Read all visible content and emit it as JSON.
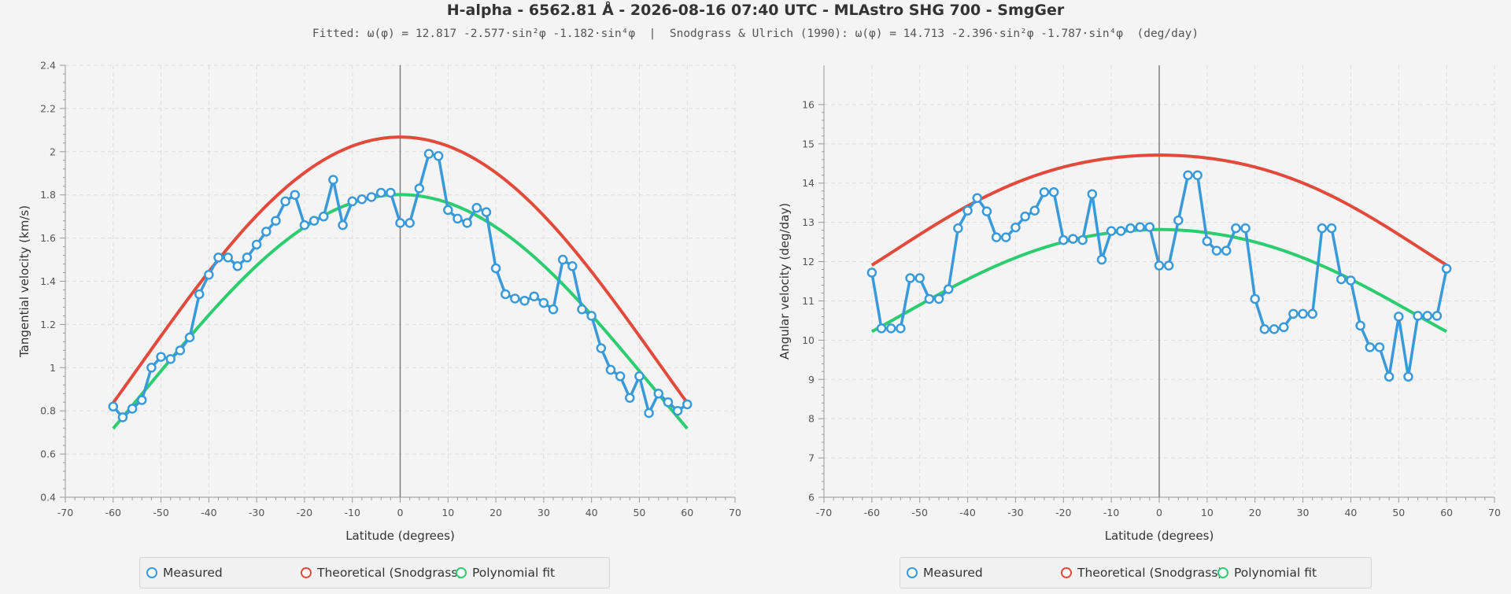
{
  "header": {
    "title": "H-alpha - 6562.81 Å - 2026-08-16 07:40 UTC - MLAstro SHG 700 - SmgGer",
    "subtitle": "Fitted: ω(φ) = 12.817 -2.577·sin²φ -1.182·sin⁴φ  |  Snodgrass & Ulrich (1990): ω(φ) = 14.713 -2.396·sin²φ -1.787·sin⁴φ  (deg/day)"
  },
  "colors": {
    "measured": "#3a9ad9",
    "theoretical": "#e24a3b",
    "fit": "#2ecc71",
    "grid": "#dcdcdc",
    "zero_line": "#777777"
  },
  "legend": {
    "measured": "Measured",
    "theoretical": "Theoretical (Snodgrass)",
    "fit": "Polynomial fit"
  },
  "chart_data": [
    {
      "type": "line",
      "id": "tangential",
      "xlabel": "Latitude (degrees)",
      "ylabel": "Tangential velocity (km/s)",
      "xlim": [
        -70,
        70
      ],
      "ylim": [
        0.4,
        2.4
      ],
      "xticks": [
        -70,
        -60,
        -50,
        -40,
        -30,
        -20,
        -10,
        0,
        10,
        20,
        30,
        40,
        50,
        60,
        70
      ],
      "yticks": [
        0.4,
        0.6,
        0.8,
        1,
        1.2,
        1.4,
        1.6,
        1.8,
        2,
        2.2,
        2.4
      ],
      "grid": true,
      "legend_position": "bottom",
      "series": [
        {
          "name": "Measured",
          "x": [
            -60,
            -58,
            -56,
            -54,
            -52,
            -50,
            -48,
            -46,
            -44,
            -42,
            -40,
            -38,
            -36,
            -34,
            -32,
            -30,
            -28,
            -26,
            -24,
            -22,
            -20,
            -18,
            -16,
            -14,
            -12,
            -10,
            -8,
            -6,
            -4,
            -2,
            0,
            2,
            4,
            6,
            8,
            10,
            12,
            14,
            16,
            18,
            20,
            22,
            24,
            26,
            28,
            30,
            32,
            34,
            36,
            38,
            40,
            42,
            44,
            46,
            48,
            50,
            52,
            54,
            56,
            58,
            60
          ],
          "y": [
            0.82,
            0.77,
            0.81,
            0.85,
            1.0,
            1.05,
            1.04,
            1.08,
            1.14,
            1.34,
            1.43,
            1.51,
            1.51,
            1.47,
            1.51,
            1.57,
            1.63,
            1.68,
            1.77,
            1.8,
            1.66,
            1.68,
            1.7,
            1.87,
            1.66,
            1.77,
            1.78,
            1.79,
            1.81,
            1.81,
            1.67,
            1.67,
            1.83,
            1.99,
            1.98,
            1.73,
            1.69,
            1.67,
            1.74,
            1.72,
            1.46,
            1.34,
            1.32,
            1.31,
            1.33,
            1.3,
            1.27,
            1.5,
            1.47,
            1.27,
            1.24,
            1.09,
            0.99,
            0.96,
            0.86,
            0.96,
            0.79,
            0.88,
            0.84,
            0.8,
            0.83
          ]
        },
        {
          "name": "Theoretical (Snodgrass)",
          "curve": "snodgrass_tangential",
          "range": [
            -60,
            60
          ]
        },
        {
          "name": "Polynomial fit",
          "curve": "fit_tangential",
          "range": [
            -60,
            60
          ]
        }
      ]
    },
    {
      "type": "line",
      "id": "angular",
      "xlabel": "Latitude (degrees)",
      "ylabel": "Angular velocity (deg/day)",
      "xlim": [
        -70,
        70
      ],
      "ylim": [
        6,
        17
      ],
      "xticks": [
        -70,
        -60,
        -50,
        -40,
        -30,
        -20,
        -10,
        0,
        10,
        20,
        30,
        40,
        50,
        60,
        70
      ],
      "yticks": [
        6,
        7,
        8,
        9,
        10,
        11,
        12,
        13,
        14,
        15,
        16
      ],
      "grid": true,
      "legend_position": "bottom",
      "series": [
        {
          "name": "Measured",
          "x": [
            -60,
            -58,
            -56,
            -54,
            -52,
            -50,
            -48,
            -46,
            -44,
            -42,
            -40,
            -38,
            -36,
            -34,
            -32,
            -30,
            -28,
            -26,
            -24,
            -22,
            -20,
            -18,
            -16,
            -14,
            -12,
            -10,
            -8,
            -6,
            -4,
            -2,
            0,
            2,
            4,
            6,
            8,
            10,
            12,
            14,
            16,
            18,
            20,
            22,
            24,
            26,
            28,
            30,
            32,
            34,
            36,
            38,
            40,
            42,
            44,
            46,
            48,
            50,
            52,
            54,
            56,
            58,
            60
          ],
          "y": [
            11.72,
            10.3,
            10.3,
            10.3,
            11.58,
            11.58,
            11.05,
            11.05,
            11.3,
            12.85,
            13.3,
            13.62,
            13.28,
            12.62,
            12.62,
            12.87,
            13.15,
            13.3,
            13.77,
            13.77,
            12.55,
            12.58,
            12.55,
            13.72,
            12.05,
            12.78,
            12.78,
            12.85,
            12.88,
            12.88,
            11.9,
            11.9,
            13.05,
            14.2,
            14.2,
            12.52,
            12.28,
            12.28,
            12.85,
            12.85,
            11.05,
            10.28,
            10.28,
            10.33,
            10.67,
            10.67,
            10.67,
            12.85,
            12.85,
            11.55,
            11.52,
            10.37,
            9.82,
            9.82,
            9.07,
            10.6,
            9.07,
            10.62,
            10.62,
            10.62,
            11.82
          ]
        },
        {
          "name": "Theoretical (Snodgrass)",
          "curve": "snodgrass_angular",
          "range": [
            -60,
            60
          ]
        },
        {
          "name": "Polynomial fit",
          "curve": "fit_angular",
          "range": [
            -60,
            60
          ]
        }
      ]
    }
  ]
}
